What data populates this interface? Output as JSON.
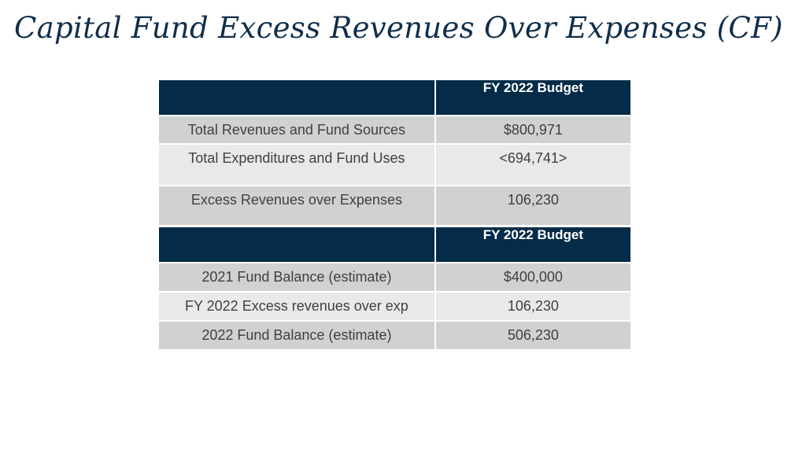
{
  "slide": {
    "title": "Capital Fund Excess Revenues Over Expenses (CF)"
  },
  "table1": {
    "header": [
      "",
      "FY 2022 Budget"
    ],
    "rows": [
      {
        "label": "Total Revenues and Fund Sources",
        "value": "$800,971"
      },
      {
        "label": "Total Expenditures and Fund Uses",
        "value": "<694,741>"
      },
      {
        "label": "Excess Revenues over Expenses",
        "value": "106,230"
      }
    ]
  },
  "table2": {
    "header": [
      "",
      "FY 2022 Budget"
    ],
    "rows": [
      {
        "label": "2021 Fund Balance (estimate)",
        "value": "$400,000"
      },
      {
        "label": "FY 2022 Excess revenues over exp",
        "value": "106,230"
      },
      {
        "label": "2022 Fund Balance (estimate)",
        "value": "506,230"
      }
    ]
  },
  "colors": {
    "title": "#102e4a",
    "header_bg": "#042c48",
    "row_dark": "#d0d1d3",
    "row_light": "#e9e9ea"
  }
}
